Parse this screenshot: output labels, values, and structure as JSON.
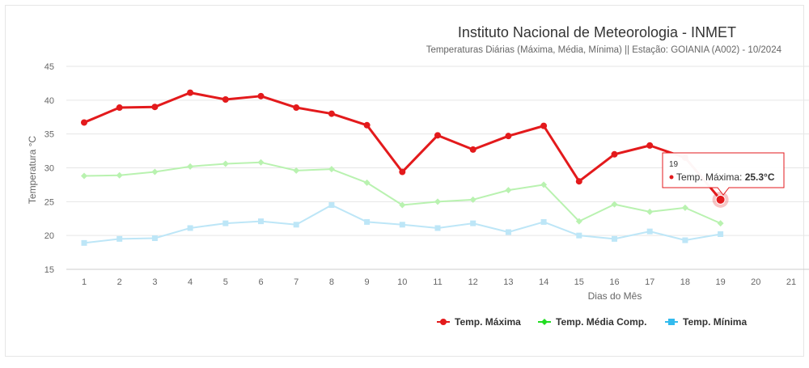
{
  "chart_data": {
    "type": "line",
    "title": "Instituto Nacional de Meteorologia - INMET",
    "subtitle": "Temperaturas Diárias (Máxima, Média, Mínima) || Estação: GOIANIA (A002) - 10/2024",
    "xlabel": "Dias do Mês",
    "ylabel": "Temperatura °C",
    "categories": [
      "1",
      "2",
      "3",
      "4",
      "5",
      "6",
      "7",
      "8",
      "9",
      "10",
      "11",
      "12",
      "13",
      "14",
      "15",
      "16",
      "17",
      "18",
      "19",
      "20",
      "21"
    ],
    "ylim": [
      15,
      45
    ],
    "yticks": [
      15,
      20,
      25,
      30,
      35,
      40,
      45
    ],
    "grid": true,
    "legend": "bottom-right",
    "series": [
      {
        "name": "Temp. Máxima",
        "color": "#e31a1c",
        "marker": "circle",
        "values": [
          36.7,
          38.9,
          39.0,
          41.1,
          40.1,
          40.6,
          38.9,
          38.0,
          36.3,
          29.4,
          34.8,
          32.7,
          34.7,
          36.2,
          28.0,
          32.0,
          33.3,
          31.5,
          25.3,
          null,
          null
        ]
      },
      {
        "name": "Temp. Média Comp.",
        "color": "#b9f2b0",
        "marker": "diamond",
        "legend_color": "#22dd22",
        "values": [
          28.8,
          28.9,
          29.4,
          30.2,
          30.6,
          30.8,
          29.6,
          29.8,
          27.8,
          24.5,
          25.0,
          25.3,
          26.7,
          27.5,
          22.1,
          24.6,
          23.5,
          24.1,
          21.8,
          null,
          null
        ]
      },
      {
        "name": "Temp. Mínima",
        "color": "#bde6f7",
        "marker": "square",
        "legend_color": "#33bbee",
        "values": [
          18.9,
          19.5,
          19.6,
          21.1,
          21.8,
          22.1,
          21.6,
          24.5,
          22.0,
          21.6,
          21.1,
          21.8,
          20.5,
          22.0,
          20.0,
          19.5,
          20.6,
          19.3,
          20.2,
          null,
          null
        ]
      }
    ],
    "tooltip": {
      "title": "19",
      "label": "Temp. Máxima:",
      "value": "25.3°C",
      "series_index": 0,
      "point_index": 18
    }
  }
}
